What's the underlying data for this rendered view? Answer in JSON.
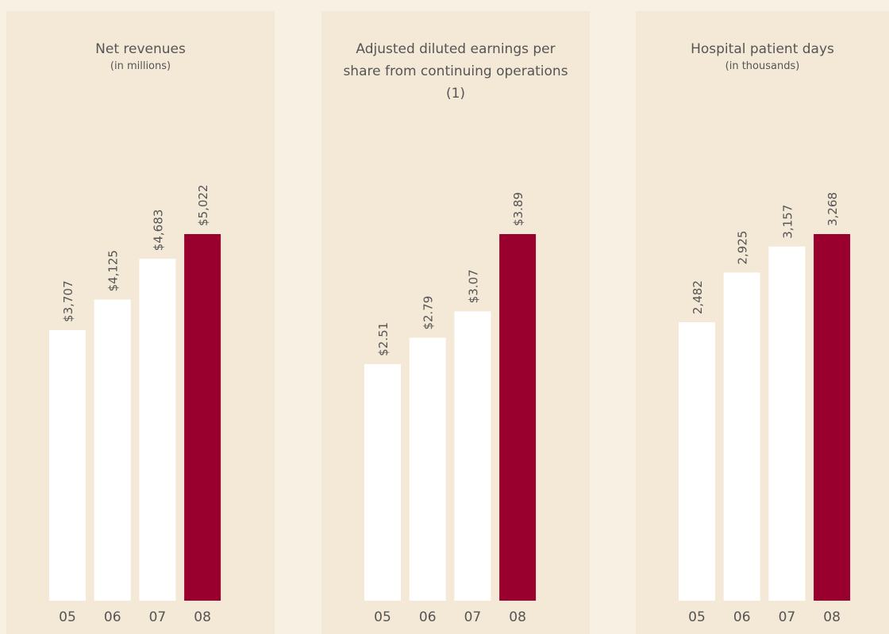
{
  "chart_data": [
    {
      "type": "bar",
      "title": "Net revenues",
      "subtitle": "(in millions)",
      "categories": [
        "05",
        "06",
        "07",
        "08"
      ],
      "values": [
        3707,
        4125,
        4683,
        5022
      ],
      "value_labels": [
        "$3,707",
        "$4,125",
        "$4,683",
        "$5,022"
      ],
      "colors": [
        "#ffffff",
        "#ffffff",
        "#ffffff",
        "#99002e"
      ]
    },
    {
      "type": "bar",
      "title": "Adjusted diluted earnings per share from continuing operations (1)",
      "categories": [
        "05",
        "06",
        "07",
        "08"
      ],
      "values": [
        2.51,
        2.79,
        3.07,
        3.89
      ],
      "value_labels": [
        "$2.51",
        "$2.79",
        "$3.07",
        "$3.89"
      ],
      "colors": [
        "#ffffff",
        "#ffffff",
        "#ffffff",
        "#99002e"
      ]
    },
    {
      "type": "bar",
      "title": "Hospital patient days",
      "subtitle": "(in thousands)",
      "categories": [
        "05",
        "06",
        "07",
        "08"
      ],
      "values": [
        2482,
        2925,
        3157,
        3268
      ],
      "value_labels": [
        "2,482",
        "2,925",
        "3,157",
        "3,268"
      ],
      "colors": [
        "#ffffff",
        "#ffffff",
        "#ffffff",
        "#99002e"
      ]
    }
  ]
}
